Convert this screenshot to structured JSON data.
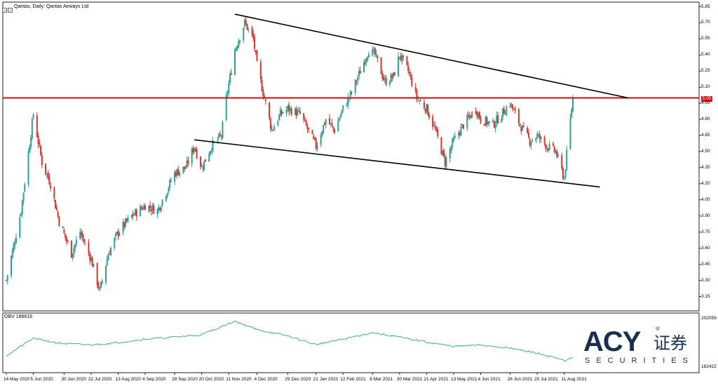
{
  "header": {
    "title": "Qantas, Daily:  Qantas Airways Ltd"
  },
  "price_tag": "5.00",
  "obv_label": "OBV 186616",
  "branding": {
    "logo_main": "ACY",
    "logo_cn": "证券",
    "logo_sub": "SECURITIES",
    "logo_reg": "®"
  },
  "colors": {
    "up": "#2aa198",
    "down": "#d9342b",
    "resistance": "#cc1111",
    "trendline": "#000000",
    "obv_line": "#3aa7b8"
  },
  "y_ticks": [
    "5.85",
    "5.70",
    "5.55",
    "5.40",
    "5.25",
    "5.10",
    "4.95",
    "4.80",
    "4.65",
    "4.50",
    "4.35",
    "4.20",
    "4.05",
    "3.90",
    "3.75",
    "3.60",
    "3.45",
    "3.30",
    "3.15"
  ],
  "x_ticks": [
    "14 May 2020",
    "5 Jun 2020",
    "30 Jun 2020",
    "22 Jul 2020",
    "13 Aug 2020",
    "4 Sep 2020",
    "28 Sep 2020",
    "20 Oct 2020",
    "11 Nov 2020",
    "4 Dec 2020",
    "29 Dec 2020",
    "21 Jan 2021",
    "12 Feb 2021",
    "8 Mar 2021",
    "30 Mar 2021",
    "21 Apr 2021",
    "13 May 2021",
    "4 Jun 2021",
    "28 Jun 2021",
    "20 Jul 2021",
    "11 Aug 2021"
  ],
  "obv_ticks": [
    "202059",
    "182422"
  ],
  "chart_data": [
    {
      "type": "candlestick",
      "title": "Qantas, Daily:  Qantas Airways Ltd",
      "ylim": [
        3.08,
        5.88
      ],
      "resistance_level": 5.0,
      "anchors": [
        [
          "2020-05-14",
          3.3
        ],
        [
          "2020-05-26",
          3.95
        ],
        [
          "2020-06-05",
          4.85
        ],
        [
          "2020-06-12",
          4.4
        ],
        [
          "2020-06-19",
          4.2
        ],
        [
          "2020-06-26",
          3.85
        ],
        [
          "2020-07-06",
          3.55
        ],
        [
          "2020-07-13",
          3.75
        ],
        [
          "2020-07-22",
          3.5
        ],
        [
          "2020-07-29",
          3.2
        ],
        [
          "2020-08-05",
          3.55
        ],
        [
          "2020-08-13",
          3.75
        ],
        [
          "2020-08-24",
          3.9
        ],
        [
          "2020-09-04",
          4.0
        ],
        [
          "2020-09-14",
          3.95
        ],
        [
          "2020-09-28",
          4.3
        ],
        [
          "2020-10-07",
          4.35
        ],
        [
          "2020-10-14",
          4.55
        ],
        [
          "2020-10-20",
          4.35
        ],
        [
          "2020-10-28",
          4.55
        ],
        [
          "2020-11-05",
          4.65
        ],
        [
          "2020-11-09",
          5.0
        ],
        [
          "2020-11-16",
          5.45
        ],
        [
          "2020-11-24",
          5.7
        ],
        [
          "2020-12-01",
          5.55
        ],
        [
          "2020-12-04",
          5.3
        ],
        [
          "2020-12-11",
          4.95
        ],
        [
          "2020-12-16",
          4.7
        ],
        [
          "2020-12-23",
          4.85
        ],
        [
          "2020-12-29",
          4.9
        ],
        [
          "2021-01-08",
          4.85
        ],
        [
          "2021-01-21",
          4.55
        ],
        [
          "2021-01-29",
          4.8
        ],
        [
          "2021-02-05",
          4.7
        ],
        [
          "2021-02-12",
          4.9
        ],
        [
          "2021-02-19",
          5.05
        ],
        [
          "2021-02-26",
          5.25
        ],
        [
          "2021-03-05",
          5.45
        ],
        [
          "2021-03-10",
          5.4
        ],
        [
          "2021-03-18",
          5.15
        ],
        [
          "2021-03-25",
          5.2
        ],
        [
          "2021-03-30",
          5.4
        ],
        [
          "2021-04-06",
          5.25
        ],
        [
          "2021-04-13",
          5.0
        ],
        [
          "2021-04-21",
          4.9
        ],
        [
          "2021-04-28",
          4.7
        ],
        [
          "2021-05-06",
          4.4
        ],
        [
          "2021-05-13",
          4.6
        ],
        [
          "2021-05-21",
          4.75
        ],
        [
          "2021-05-31",
          4.9
        ],
        [
          "2021-06-04",
          4.8
        ],
        [
          "2021-06-14",
          4.75
        ],
        [
          "2021-06-28",
          4.95
        ],
        [
          "2021-07-06",
          4.75
        ],
        [
          "2021-07-14",
          4.6
        ],
        [
          "2021-07-20",
          4.65
        ],
        [
          "2021-07-28",
          4.55
        ],
        [
          "2021-08-04",
          4.5
        ],
        [
          "2021-08-11",
          4.25
        ],
        [
          "2021-08-15",
          4.7
        ],
        [
          "2021-08-18",
          5.0
        ]
      ],
      "trendlines": [
        {
          "from": [
            "2020-11-16",
            5.78
          ],
          "to": [
            "2021-10-02",
            5.0
          ]
        },
        {
          "from": [
            "2020-10-14",
            4.61
          ],
          "to": [
            "2021-09-09",
            4.17
          ]
        }
      ]
    },
    {
      "type": "line",
      "name": "OBV",
      "ylim": [
        182422,
        202059
      ],
      "anchors": [
        [
          "2020-05-14",
          186500
        ],
        [
          "2020-06-05",
          193500
        ],
        [
          "2020-06-26",
          191500
        ],
        [
          "2020-07-22",
          190800
        ],
        [
          "2020-08-13",
          191800
        ],
        [
          "2020-09-04",
          193200
        ],
        [
          "2020-09-28",
          194000
        ],
        [
          "2020-10-20",
          195000
        ],
        [
          "2020-11-16",
          200500
        ],
        [
          "2020-12-04",
          197000
        ],
        [
          "2020-12-29",
          194500
        ],
        [
          "2021-01-21",
          191000
        ],
        [
          "2021-02-12",
          193200
        ],
        [
          "2021-03-08",
          195800
        ],
        [
          "2021-03-30",
          194000
        ],
        [
          "2021-04-21",
          192000
        ],
        [
          "2021-05-13",
          190200
        ],
        [
          "2021-06-04",
          190800
        ],
        [
          "2021-06-28",
          189500
        ],
        [
          "2021-07-20",
          187500
        ],
        [
          "2021-08-11",
          184500
        ],
        [
          "2021-08-18",
          185500
        ]
      ]
    }
  ]
}
